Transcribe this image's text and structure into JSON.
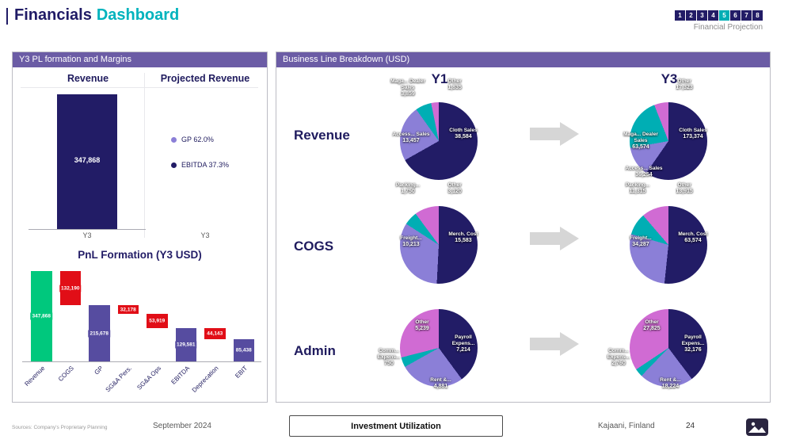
{
  "page": {
    "title_primary": "Financials",
    "title_secondary": "Dashboard",
    "pager": {
      "pages": [
        "1",
        "2",
        "3",
        "4",
        "5",
        "6",
        "7",
        "8"
      ],
      "active": "5",
      "label": "Financial Projection"
    }
  },
  "left_panel": {
    "header": "Y3 PL formation and Margins",
    "revenue_section": {
      "title": "Revenue",
      "x_label": "Y3"
    },
    "projected_section": {
      "title": "Projected Revenue",
      "x_label": "Y3",
      "legend": [
        {
          "label": "GP 62.0%",
          "color": "#8B7FD7"
        },
        {
          "label": "EBITDA 37.3%",
          "color": "#221C66"
        }
      ]
    },
    "waterfall_title": "PnL Formation (Y3  USD)"
  },
  "right_panel": {
    "header": "Business Line Breakdown (USD)",
    "columns": [
      "Y1",
      "Y3"
    ],
    "row_labels": [
      "Revenue",
      "COGS",
      "Admin"
    ]
  },
  "footer": {
    "source": "Sources: Company's Proprietary Planning",
    "date": "September 2024",
    "button": "Investment Utilization",
    "location": "Kajaani, Finland",
    "page_number": "24"
  },
  "colors": {
    "navy": "#221C66",
    "teal": "#00AEB4",
    "purple_header": "#6B5CA5",
    "pie_purple": "#8B7FD7",
    "pie_magenta": "#D06BD3",
    "wf_green": "#00C87D",
    "wf_red": "#E10E17",
    "wf_purple": "#564CA0",
    "arrow_gray": "#D6D6D6"
  },
  "chart_data": [
    {
      "type": "bar",
      "title": "Revenue",
      "categories": [
        "Y3"
      ],
      "values": [
        347868
      ],
      "value_labels": [
        "347,868"
      ],
      "bar_color": "#221C66",
      "annotations": [
        "GP 62.0%",
        "EBITDA 37.3%"
      ]
    },
    {
      "type": "bar",
      "subtype": "waterfall",
      "title": "PnL Formation (Y3 USD)",
      "categories": [
        "Revenue",
        "COGS",
        "GP",
        "SG&A Pers.",
        "SG&A Ops",
        "EBITDA",
        "Deprecation",
        "EBIT"
      ],
      "values": [
        347868,
        -132190,
        215678,
        -32178,
        -53919,
        129581,
        -44143,
        85438
      ],
      "value_labels": [
        "347,868",
        "132,190",
        "215,678",
        "32,178",
        "53,919",
        "129,581",
        "44,143",
        "85,438"
      ],
      "bar_types": [
        "total",
        "change",
        "subtotal",
        "change",
        "change",
        "subtotal",
        "change",
        "subtotal"
      ],
      "ylim": [
        0,
        347868
      ]
    },
    {
      "type": "pie",
      "title": "Revenue Y1",
      "segments": [
        {
          "label": "Cloth Sales",
          "value": 38584,
          "value_label": "38,584",
          "color": "#221C66",
          "label_pos": "r"
        },
        {
          "label": "Access... Sales",
          "value": 13457,
          "value_label": "13,457",
          "color": "#8B7FD7",
          "label_pos": "l"
        },
        {
          "label": "Maga... Dealer Sales",
          "value": 3859,
          "value_label": "3,859",
          "color": "#00AEB4",
          "label_pos": "tl-out"
        },
        {
          "label": "Other",
          "value": 1835,
          "value_label": "1,835",
          "color": "#D06BD3",
          "label_pos": "t-out"
        }
      ]
    },
    {
      "type": "pie",
      "title": "Revenue Y3",
      "segments": [
        {
          "label": "Cloth Sales",
          "value": 173374,
          "value_label": "173,374",
          "color": "#221C66",
          "label_pos": "r"
        },
        {
          "label": "Access... Sales",
          "value": 36254,
          "value_label": "36,254",
          "color": "#8B7FD7",
          "label_pos": "bl"
        },
        {
          "label": "Maga... Dealer Sales",
          "value": 63574,
          "value_label": "63,574",
          "color": "#00AEB4",
          "label_pos": "l"
        },
        {
          "label": "Other",
          "value": 17323,
          "value_label": "17,323",
          "color": "#D06BD3",
          "label_pos": "t-out"
        }
      ]
    },
    {
      "type": "pie",
      "title": "COGS Y1",
      "segments": [
        {
          "label": "Merch. Cost",
          "value": 15583,
          "value_label": "15,583",
          "color": "#221C66",
          "label_pos": "r"
        },
        {
          "label": "Freight...",
          "value": 10213,
          "value_label": "10,213",
          "color": "#8B7FD7",
          "label_pos": "l"
        },
        {
          "label": "Packing...",
          "value": 1750,
          "value_label": "1,750",
          "color": "#00AEB4",
          "label_pos": "tl-out"
        },
        {
          "label": "Other",
          "value": 3120,
          "value_label": "3,120",
          "color": "#D06BD3",
          "label_pos": "t-out"
        }
      ]
    },
    {
      "type": "pie",
      "title": "COGS Y3",
      "segments": [
        {
          "label": "Merch. Cost",
          "value": 63574,
          "value_label": "63,574",
          "color": "#221C66",
          "label_pos": "r"
        },
        {
          "label": "Freight...",
          "value": 34287,
          "value_label": "34,287",
          "color": "#8B7FD7",
          "label_pos": "l"
        },
        {
          "label": "Packing...",
          "value": 11315,
          "value_label": "11,315",
          "color": "#00AEB4",
          "label_pos": "tl-out"
        },
        {
          "label": "Other",
          "value": 13915,
          "value_label": "13,915",
          "color": "#D06BD3",
          "label_pos": "t-out"
        }
      ]
    },
    {
      "type": "pie",
      "title": "Admin Y1",
      "segments": [
        {
          "label": "Payroll Expens...",
          "value": 7214,
          "value_label": "7,214",
          "color": "#221C66",
          "label_pos": "r"
        },
        {
          "label": "Rent &...",
          "value": 4881,
          "value_label": "4,881",
          "color": "#8B7FD7",
          "label_pos": "b"
        },
        {
          "label": "Comm... Expens...",
          "value": 750,
          "value_label": "750",
          "color": "#00AEB4",
          "label_pos": "left-out"
        },
        {
          "label": "Other",
          "value": 5239,
          "value_label": "5,239",
          "color": "#D06BD3",
          "label_pos": "tl-in"
        }
      ]
    },
    {
      "type": "pie",
      "title": "Admin Y3",
      "segments": [
        {
          "label": "Payroll Expens...",
          "value": 32176,
          "value_label": "32,176",
          "color": "#221C66",
          "label_pos": "r"
        },
        {
          "label": "Rent &...",
          "value": 18224,
          "value_label": "18,224",
          "color": "#8B7FD7",
          "label_pos": "b"
        },
        {
          "label": "Comm... Expens...",
          "value": 2760,
          "value_label": "2,760",
          "color": "#00AEB4",
          "label_pos": "left-out"
        },
        {
          "label": "Other",
          "value": 27825,
          "value_label": "27,825",
          "color": "#D06BD3",
          "label_pos": "tl-in"
        }
      ]
    }
  ]
}
